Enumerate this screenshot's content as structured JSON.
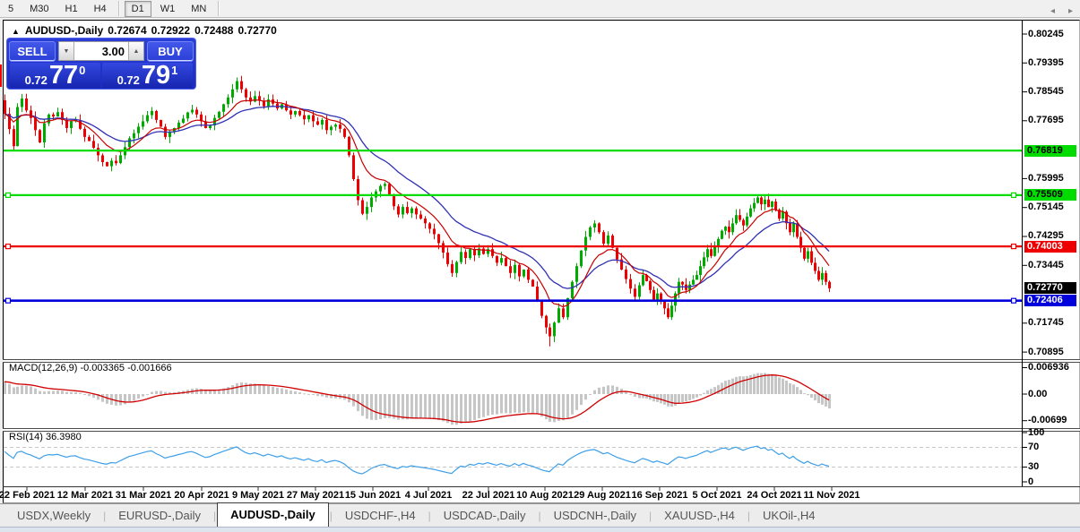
{
  "toolbar": {
    "timeframes": [
      {
        "label": "5",
        "active": false
      },
      {
        "label": "M30",
        "active": false
      },
      {
        "label": "H1",
        "active": false
      },
      {
        "label": "H4",
        "active": false
      },
      {
        "label": "D1",
        "active": true
      },
      {
        "label": "W1",
        "active": false
      },
      {
        "label": "MN",
        "active": false
      }
    ]
  },
  "title": {
    "collapse_arrow": "▲",
    "symbol": "AUDUSD-,Daily",
    "open": "0.72674",
    "high": "0.72922",
    "low": "0.72488",
    "close": "0.72770"
  },
  "trade_panel": {
    "sell_label": "SELL",
    "buy_label": "BUY",
    "volume": "3.00",
    "spinner_down": "▼",
    "spinner_up": "▲",
    "sell_price": {
      "prefix": "0.72",
      "big": "77",
      "sup": "0"
    },
    "buy_price": {
      "prefix": "0.72",
      "big": "79",
      "sup": "1"
    }
  },
  "price_axis": {
    "ticks": [
      "0.80245",
      "0.79395",
      "0.78545",
      "0.77695",
      "0.75995",
      "0.75145",
      "0.74295",
      "0.73445",
      "0.71745",
      "0.70895"
    ]
  },
  "levels": [
    {
      "value": "0.76819",
      "color": "green",
      "handles": false
    },
    {
      "value": "0.75509",
      "color": "green",
      "handles": true
    },
    {
      "value": "0.74003",
      "color": "red",
      "handles": true
    },
    {
      "value": "0.72406",
      "color": "blue",
      "handles": true
    }
  ],
  "current_price": {
    "value": "0.72770"
  },
  "macd": {
    "label": "MACD(12,26,9) -0.003365 -0.001666",
    "params": "12,26,9",
    "value": "-0.003365",
    "signal_value": "-0.001666",
    "axis": [
      "0.006936",
      "0.00",
      "-0.00699"
    ]
  },
  "rsi": {
    "label": "RSI(14) 36.3980",
    "period": "14",
    "value": "36.3980",
    "axis": [
      "100",
      "70",
      "30",
      "0"
    ]
  },
  "dates": [
    "22 Feb 2021",
    "12 Mar 2021",
    "31 Mar 2021",
    "20 Apr 2021",
    "9 May 2021",
    "27 May 2021",
    "15 Jun 2021",
    "4 Jul 2021",
    "22 Jul 2021",
    "10 Aug 2021",
    "29 Aug 2021",
    "16 Sep 2021",
    "5 Oct 2021",
    "24 Oct 2021",
    "11 Nov 2021"
  ],
  "tabs": {
    "items": [
      "USDX,Weekly",
      "EURUSD-,Daily",
      "AUDUSD-,Daily",
      "USDCHF-,H4",
      "USDCAD-,Daily",
      "USDCNH-,Daily",
      "XAUUSD-,H4",
      "UKOil-,H4"
    ],
    "active": "AUDUSD-,Daily",
    "scroll_left": "◂",
    "scroll_right": "▸"
  },
  "colors": {
    "bull": "#00AB00",
    "bear": "#EE0000",
    "ma_fast": "#C80000",
    "ma_slow": "#3030B4",
    "level_green": "#00DB00",
    "level_red": "#EE0000",
    "level_blue": "#0000DD",
    "macd_hist": "#C6C6C6",
    "macd_signal": "#D00000",
    "rsi_line": "#3D9FE8",
    "dashed_level": "#C8C8C8",
    "current_bg": "#000000"
  },
  "chart_data": {
    "type": "candlestick",
    "symbol": "AUDUSD",
    "timeframe": "Daily",
    "axis_price_ticks": [
      0.80245,
      0.79395,
      0.78545,
      0.77695,
      0.75995,
      0.75145,
      0.74295,
      0.73445,
      0.71745,
      0.70895
    ],
    "level_prices": [
      0.76819,
      0.75509,
      0.74003,
      0.72406
    ],
    "current_price": 0.7277,
    "macd_axis_values": [
      0.006936,
      0,
      -0.00699
    ],
    "rsi_axis_values": [
      100,
      70,
      30,
      0
    ],
    "date_ticks_x": [
      30,
      95,
      160,
      225,
      288,
      352,
      416,
      478,
      545,
      608,
      672,
      736,
      800,
      864,
      928
    ],
    "ma_fast_period": 10,
    "ma_slow_period": 21,
    "spike_low": 0.7106,
    "bars": [
      [
        5,
        0.779
      ],
      [
        10,
        0.7745
      ],
      [
        15,
        0.7695
      ],
      [
        19,
        0.781
      ],
      [
        24,
        0.7835
      ],
      [
        29,
        0.78
      ],
      [
        34,
        0.7778
      ],
      [
        39,
        0.7742
      ],
      [
        44,
        0.7706
      ],
      [
        49,
        0.7762
      ],
      [
        54,
        0.7788
      ],
      [
        59,
        0.7782
      ],
      [
        64,
        0.7795
      ],
      [
        69,
        0.7772
      ],
      [
        74,
        0.7748
      ],
      [
        79,
        0.7768
      ],
      [
        84,
        0.7772
      ],
      [
        89,
        0.7746
      ],
      [
        94,
        0.7722
      ],
      [
        99,
        0.771
      ],
      [
        104,
        0.769
      ],
      [
        109,
        0.7668
      ],
      [
        114,
        0.7648
      ],
      [
        119,
        0.7636
      ],
      [
        124,
        0.7652
      ],
      [
        129,
        0.7645
      ],
      [
        134,
        0.7668
      ],
      [
        139,
        0.7692
      ],
      [
        144,
        0.7718
      ],
      [
        149,
        0.7733
      ],
      [
        154,
        0.7752
      ],
      [
        159,
        0.7768
      ],
      [
        164,
        0.7786
      ],
      [
        169,
        0.7798
      ],
      [
        174,
        0.7772
      ],
      [
        179,
        0.7752
      ],
      [
        184,
        0.7722
      ],
      [
        189,
        0.7736
      ],
      [
        194,
        0.7748
      ],
      [
        199,
        0.7764
      ],
      [
        204,
        0.7776
      ],
      [
        209,
        0.7794
      ],
      [
        214,
        0.7802
      ],
      [
        219,
        0.7788
      ],
      [
        224,
        0.7768
      ],
      [
        229,
        0.7748
      ],
      [
        234,
        0.7756
      ],
      [
        239,
        0.7778
      ],
      [
        244,
        0.7796
      ],
      [
        249,
        0.7818
      ],
      [
        254,
        0.7838
      ],
      [
        259,
        0.7862
      ],
      [
        264,
        0.7886
      ],
      [
        269,
        0.7862
      ],
      [
        274,
        0.7838
      ],
      [
        279,
        0.7826
      ],
      [
        284,
        0.7842
      ],
      [
        289,
        0.7828
      ],
      [
        294,
        0.7812
      ],
      [
        299,
        0.7832
      ],
      [
        304,
        0.782
      ],
      [
        309,
        0.7806
      ],
      [
        314,
        0.7818
      ],
      [
        319,
        0.78
      ],
      [
        324,
        0.7788
      ],
      [
        329,
        0.7798
      ],
      [
        334,
        0.7786
      ],
      [
        339,
        0.7774
      ],
      [
        344,
        0.7786
      ],
      [
        349,
        0.7768
      ],
      [
        354,
        0.7758
      ],
      [
        359,
        0.7772
      ],
      [
        364,
        0.7742
      ],
      [
        369,
        0.7752
      ],
      [
        374,
        0.7758
      ],
      [
        379,
        0.7746
      ],
      [
        384,
        0.7722
      ],
      [
        389,
        0.7668
      ],
      [
        394,
        0.7598
      ],
      [
        399,
        0.7536
      ],
      [
        404,
        0.7496
      ],
      [
        409,
        0.7516
      ],
      [
        414,
        0.7544
      ],
      [
        419,
        0.7562
      ],
      [
        424,
        0.7578
      ],
      [
        429,
        0.7584
      ],
      [
        434,
        0.7552
      ],
      [
        439,
        0.7518
      ],
      [
        444,
        0.7494
      ],
      [
        449,
        0.7516
      ],
      [
        454,
        0.7498
      ],
      [
        459,
        0.7512
      ],
      [
        464,
        0.7494
      ],
      [
        469,
        0.7482
      ],
      [
        474,
        0.7468
      ],
      [
        479,
        0.7452
      ],
      [
        484,
        0.7436
      ],
      [
        489,
        0.741
      ],
      [
        494,
        0.7382
      ],
      [
        499,
        0.7348
      ],
      [
        504,
        0.7322
      ],
      [
        509,
        0.7354
      ],
      [
        514,
        0.7384
      ],
      [
        519,
        0.7366
      ],
      [
        524,
        0.7392
      ],
      [
        529,
        0.7374
      ],
      [
        534,
        0.7394
      ],
      [
        539,
        0.7378
      ],
      [
        544,
        0.7392
      ],
      [
        549,
        0.7372
      ],
      [
        554,
        0.7352
      ],
      [
        559,
        0.7366
      ],
      [
        564,
        0.7342
      ],
      [
        569,
        0.7322
      ],
      [
        574,
        0.7346
      ],
      [
        579,
        0.7312
      ],
      [
        584,
        0.7332
      ],
      [
        589,
        0.7302
      ],
      [
        594,
        0.7282
      ],
      [
        599,
        0.7242
      ],
      [
        604,
        0.7196
      ],
      [
        609,
        0.7162
      ],
      [
        613,
        0.7136
      ],
      [
        618,
        0.7176
      ],
      [
        623,
        0.7218
      ],
      [
        628,
        0.7192
      ],
      [
        633,
        0.7248
      ],
      [
        638,
        0.7296
      ],
      [
        643,
        0.7342
      ],
      [
        648,
        0.7388
      ],
      [
        653,
        0.7428
      ],
      [
        658,
        0.7456
      ],
      [
        663,
        0.7468
      ],
      [
        668,
        0.7442
      ],
      [
        673,
        0.7408
      ],
      [
        678,
        0.7432
      ],
      [
        683,
        0.7396
      ],
      [
        688,
        0.7362
      ],
      [
        693,
        0.7332
      ],
      [
        698,
        0.7304
      ],
      [
        703,
        0.7276
      ],
      [
        708,
        0.7252
      ],
      [
        713,
        0.7286
      ],
      [
        717,
        0.7316
      ],
      [
        721,
        0.7298
      ],
      [
        725,
        0.7272
      ],
      [
        729,
        0.7244
      ],
      [
        733,
        0.7262
      ],
      [
        737,
        0.7238
      ],
      [
        741,
        0.7218
      ],
      [
        745,
        0.7192
      ],
      [
        749,
        0.7226
      ],
      [
        753,
        0.7262
      ],
      [
        757,
        0.7296
      ],
      [
        761,
        0.7288
      ],
      [
        765,
        0.7272
      ],
      [
        769,
        0.7288
      ],
      [
        773,
        0.7302
      ],
      [
        777,
        0.7316
      ],
      [
        781,
        0.7342
      ],
      [
        785,
        0.7368
      ],
      [
        789,
        0.7392
      ],
      [
        793,
        0.7372
      ],
      [
        797,
        0.7398
      ],
      [
        801,
        0.7422
      ],
      [
        805,
        0.7446
      ],
      [
        809,
        0.7458
      ],
      [
        813,
        0.7442
      ],
      [
        817,
        0.7468
      ],
      [
        821,
        0.7492
      ],
      [
        825,
        0.7478
      ],
      [
        829,
        0.7462
      ],
      [
        833,
        0.7488
      ],
      [
        837,
        0.7512
      ],
      [
        841,
        0.7528
      ],
      [
        845,
        0.7544
      ],
      [
        849,
        0.7524
      ],
      [
        853,
        0.7538
      ],
      [
        857,
        0.7516
      ],
      [
        861,
        0.7532
      ],
      [
        865,
        0.7508
      ],
      [
        869,
        0.7482
      ],
      [
        873,
        0.7502
      ],
      [
        877,
        0.7468
      ],
      [
        881,
        0.7442
      ],
      [
        885,
        0.7468
      ],
      [
        889,
        0.7428
      ],
      [
        893,
        0.7396
      ],
      [
        897,
        0.7364
      ],
      [
        901,
        0.7386
      ],
      [
        905,
        0.7352
      ],
      [
        909,
        0.7328
      ],
      [
        913,
        0.7302
      ],
      [
        917,
        0.7322
      ],
      [
        921,
        0.7296
      ],
      [
        925,
        0.7277
      ]
    ]
  }
}
